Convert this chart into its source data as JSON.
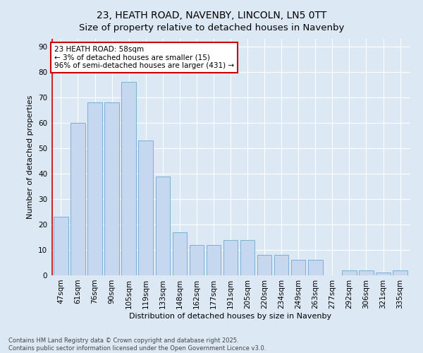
{
  "title": "23, HEATH ROAD, NAVENBY, LINCOLN, LN5 0TT",
  "subtitle": "Size of property relative to detached houses in Navenby",
  "xlabel": "Distribution of detached houses by size in Navenby",
  "ylabel": "Number of detached properties",
  "categories": [
    "47sqm",
    "61sqm",
    "76sqm",
    "90sqm",
    "105sqm",
    "119sqm",
    "133sqm",
    "148sqm",
    "162sqm",
    "177sqm",
    "191sqm",
    "205sqm",
    "220sqm",
    "234sqm",
    "249sqm",
    "263sqm",
    "277sqm",
    "292sqm",
    "306sqm",
    "321sqm",
    "335sqm"
  ],
  "values": [
    23,
    60,
    68,
    68,
    76,
    53,
    39,
    17,
    12,
    12,
    14,
    14,
    8,
    8,
    6,
    6,
    0,
    2,
    2,
    1,
    2
  ],
  "bar_color": "#c5d8f0",
  "bar_edge_color": "#7bafd4",
  "background_color": "#dde8f5",
  "grid_color": "#ffffff",
  "annotation_text": "23 HEATH ROAD: 58sqm\n← 3% of detached houses are smaller (15)\n96% of semi-detached houses are larger (431) →",
  "annotation_box_color": "#ffffff",
  "annotation_box_edge_color": "#cc0000",
  "vline_color": "#cc0000",
  "ylim": [
    0,
    93
  ],
  "yticks": [
    0,
    10,
    20,
    30,
    40,
    50,
    60,
    70,
    80,
    90
  ],
  "footer": "Contains HM Land Registry data © Crown copyright and database right 2025.\nContains public sector information licensed under the Open Government Licence v3.0.",
  "title_fontsize": 10,
  "axis_label_fontsize": 8,
  "tick_fontsize": 7.5,
  "annotation_fontsize": 7.5,
  "footer_fontsize": 6
}
